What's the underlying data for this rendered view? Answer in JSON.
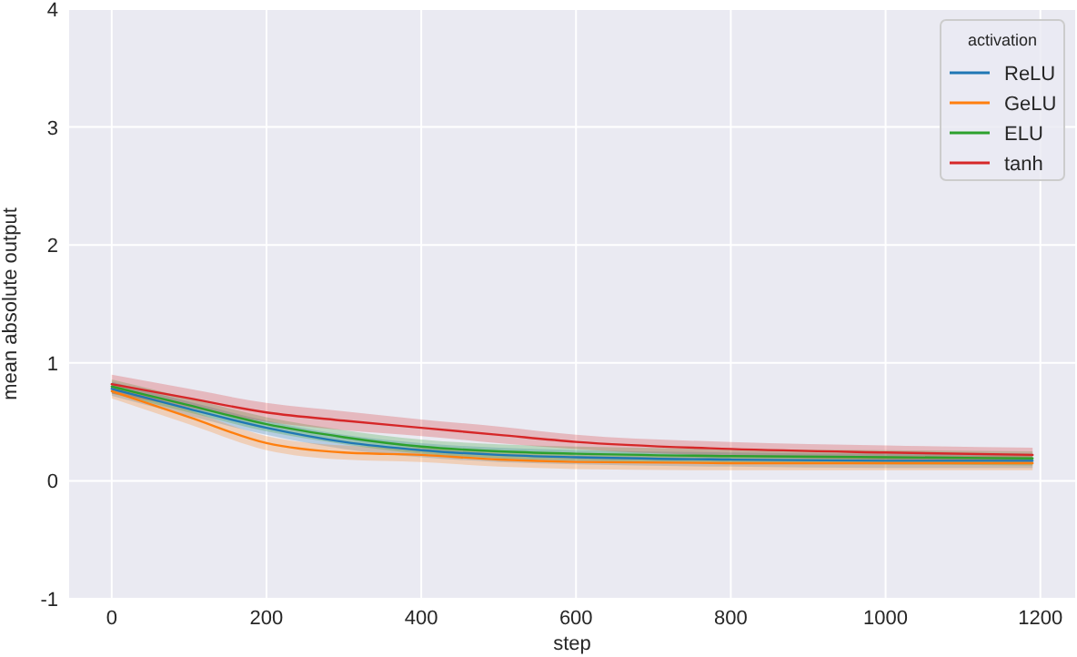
{
  "chart_data": {
    "type": "line",
    "xlabel": "step",
    "ylabel": "mean absolute output",
    "legend_title": "activation",
    "legend": "top right",
    "grid": true,
    "line_style": "solid",
    "marker": "none",
    "x": [
      0,
      100,
      200,
      300,
      400,
      500,
      600,
      800,
      1000,
      1190
    ],
    "xlim": [
      -55,
      1245
    ],
    "xticks": [
      0,
      200,
      400,
      600,
      800,
      1000,
      1200
    ],
    "ylim": [
      -1,
      4
    ],
    "yticks": [
      -1,
      0,
      1,
      2,
      3,
      4
    ],
    "series": [
      {
        "name": "ReLU",
        "color": "#1f77b4",
        "values": [
          0.78,
          0.61,
          0.45,
          0.33,
          0.26,
          0.22,
          0.2,
          0.18,
          0.17,
          0.17
        ],
        "lower": [
          0.72,
          0.55,
          0.39,
          0.27,
          0.2,
          0.16,
          0.14,
          0.12,
          0.11,
          0.11
        ],
        "upper": [
          0.84,
          0.67,
          0.51,
          0.39,
          0.32,
          0.28,
          0.26,
          0.24,
          0.23,
          0.23
        ]
      },
      {
        "name": "GeLU",
        "color": "#ff7f0e",
        "values": [
          0.76,
          0.54,
          0.32,
          0.24,
          0.22,
          0.18,
          0.16,
          0.15,
          0.15,
          0.15
        ],
        "lower": [
          0.7,
          0.48,
          0.26,
          0.18,
          0.16,
          0.12,
          0.1,
          0.09,
          0.09,
          0.09
        ],
        "upper": [
          0.82,
          0.6,
          0.38,
          0.3,
          0.28,
          0.24,
          0.22,
          0.21,
          0.21,
          0.21
        ]
      },
      {
        "name": "ELU",
        "color": "#2ca02c",
        "values": [
          0.8,
          0.64,
          0.48,
          0.37,
          0.29,
          0.25,
          0.23,
          0.21,
          0.2,
          0.19
        ],
        "lower": [
          0.74,
          0.58,
          0.42,
          0.31,
          0.23,
          0.19,
          0.17,
          0.15,
          0.14,
          0.13
        ],
        "upper": [
          0.86,
          0.7,
          0.54,
          0.43,
          0.35,
          0.31,
          0.29,
          0.27,
          0.26,
          0.25
        ]
      },
      {
        "name": "tanh",
        "color": "#d62728",
        "values": [
          0.82,
          0.7,
          0.58,
          0.51,
          0.45,
          0.39,
          0.33,
          0.27,
          0.24,
          0.22
        ],
        "lower": [
          0.74,
          0.62,
          0.5,
          0.43,
          0.38,
          0.32,
          0.27,
          0.21,
          0.18,
          0.16
        ],
        "upper": [
          0.9,
          0.78,
          0.66,
          0.59,
          0.52,
          0.46,
          0.39,
          0.33,
          0.3,
          0.28
        ]
      }
    ]
  }
}
